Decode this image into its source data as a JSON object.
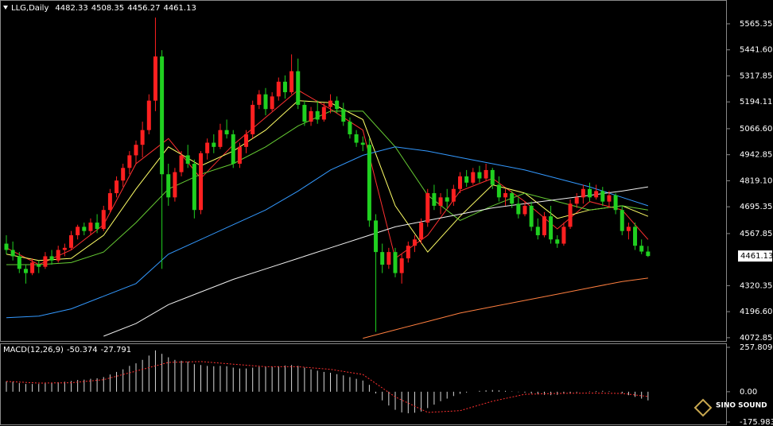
{
  "chart_data": [
    {
      "type": "candlestick",
      "title": "LLG,Daily",
      "open": [
        4520,
        4490,
        4460,
        4400,
        4380,
        4420,
        4410,
        4460,
        4440,
        4490,
        4500,
        4560,
        4600,
        4580,
        4620,
        4590,
        4680,
        4760,
        4820,
        4880,
        4940,
        4990,
        5060,
        5200,
        5410,
        4850,
        4740,
        4860,
        4940,
        4900,
        4680,
        4950,
        5000,
        4980,
        5060,
        5040,
        4900,
        4980,
        5040,
        5180,
        5230,
        5160,
        5220,
        5290,
        5240,
        5340,
        5180,
        5100,
        5150,
        5110,
        5170,
        5200,
        5160,
        5100,
        5040,
        5000,
        4990,
        4630,
        4480,
        4420,
        4480,
        4380,
        4450,
        4510,
        4540,
        4620,
        4760,
        4700,
        4740,
        4720,
        4780,
        4840,
        4810,
        4860,
        4830,
        4870,
        4800,
        4740,
        4760,
        4710,
        4660,
        4700,
        4600,
        4560,
        4650,
        4540,
        4520,
        4600,
        4710,
        4740,
        4780,
        4740,
        4770,
        4720,
        4750,
        4680,
        4580,
        4600,
        4510,
        4482.33
      ],
      "high": [
        4560,
        4530,
        4480,
        4420,
        4450,
        4440,
        4480,
        4490,
        4510,
        4520,
        4580,
        4610,
        4620,
        4640,
        4660,
        4700,
        4780,
        4840,
        4900,
        4960,
        5010,
        5100,
        5230,
        5595,
        5440,
        4900,
        4880,
        4960,
        4990,
        4920,
        4960,
        5020,
        5040,
        5090,
        5110,
        5060,
        5000,
        5060,
        5200,
        5250,
        5260,
        5240,
        5310,
        5320,
        5420,
        5400,
        5200,
        5170,
        5200,
        5190,
        5230,
        5220,
        5190,
        5120,
        5060,
        5030,
        5020,
        4660,
        4520,
        4500,
        4500,
        4470,
        4530,
        4560,
        4640,
        4780,
        4800,
        4760,
        4780,
        4800,
        4860,
        4870,
        4880,
        4890,
        4900,
        4880,
        4840,
        4780,
        4770,
        4740,
        4720,
        4720,
        4640,
        4670,
        4700,
        4560,
        4620,
        4730,
        4760,
        4800,
        4810,
        4800,
        4790,
        4770,
        4760,
        4700,
        4620,
        4620,
        4540,
        4508.35
      ],
      "low": [
        4470,
        4440,
        4380,
        4330,
        4370,
        4380,
        4400,
        4420,
        4430,
        4460,
        4490,
        4540,
        4560,
        4560,
        4570,
        4580,
        4670,
        4740,
        4790,
        4850,
        4900,
        4930,
        5040,
        5150,
        4400,
        4700,
        4720,
        4840,
        4880,
        4640,
        4660,
        4920,
        4950,
        4970,
        5020,
        4880,
        4880,
        4950,
        5020,
        5160,
        5130,
        5150,
        5200,
        5210,
        5230,
        5160,
        5080,
        5080,
        5090,
        5100,
        5140,
        5140,
        5080,
        5020,
        4980,
        4960,
        4600,
        4100,
        4380,
        4400,
        4360,
        4330,
        4430,
        4480,
        4520,
        4600,
        4680,
        4660,
        4690,
        4700,
        4760,
        4790,
        4800,
        4810,
        4820,
        4780,
        4720,
        4700,
        4690,
        4640,
        4650,
        4580,
        4540,
        4550,
        4520,
        4500,
        4510,
        4590,
        4690,
        4710,
        4720,
        4730,
        4700,
        4690,
        4660,
        4560,
        4540,
        4490,
        4470,
        4456.27
      ],
      "close": [
        4490,
        4460,
        4400,
        4380,
        4430,
        4410,
        4460,
        4440,
        4490,
        4500,
        4560,
        4600,
        4580,
        4620,
        4590,
        4680,
        4760,
        4820,
        4880,
        4940,
        4990,
        5060,
        5200,
        5410,
        4850,
        4740,
        4860,
        4940,
        4900,
        4680,
        4950,
        5000,
        4980,
        5060,
        5040,
        4900,
        4980,
        5040,
        5180,
        5230,
        5160,
        5220,
        5290,
        5240,
        5340,
        5180,
        5100,
        5150,
        5110,
        5170,
        5200,
        5160,
        5100,
        5040,
        5000,
        4990,
        4630,
        4480,
        4420,
        4480,
        4380,
        4450,
        4510,
        4540,
        4620,
        4760,
        4700,
        4740,
        4720,
        4780,
        4840,
        4810,
        4860,
        4830,
        4870,
        4800,
        4740,
        4760,
        4710,
        4660,
        4700,
        4600,
        4560,
        4650,
        4540,
        4520,
        4600,
        4710,
        4740,
        4780,
        4740,
        4770,
        4720,
        4750,
        4680,
        4580,
        4600,
        4510,
        4482.33,
        4461.13
      ],
      "up_color": "#ff2020",
      "down_color": "#20d020",
      "ma_x": [
        0,
        5,
        10,
        15,
        20,
        25,
        30,
        35,
        40,
        45,
        50,
        55,
        60,
        65,
        70,
        75,
        80,
        85,
        90,
        95,
        99
      ],
      "lines": [
        {
          "color": "#ff3030",
          "values": [
            4500,
            4420,
            4490,
            4610,
            4900,
            5020,
            4830,
            4990,
            5120,
            5250,
            5160,
            5060,
            4450,
            4560,
            4770,
            4830,
            4720,
            4590,
            4720,
            4680,
            4540
          ]
        },
        {
          "color": "#ffff66",
          "values": [
            4470,
            4440,
            4450,
            4560,
            4780,
            4980,
            4890,
            4960,
            5060,
            5200,
            5190,
            5110,
            4700,
            4480,
            4650,
            4800,
            4760,
            4640,
            4680,
            4700,
            4650
          ]
        },
        {
          "color": "#66cc33",
          "values": [
            4420,
            4420,
            4430,
            4480,
            4620,
            4780,
            4850,
            4900,
            4980,
            5080,
            5150,
            5150,
            4980,
            4750,
            4630,
            4700,
            4760,
            4720,
            4680,
            4700,
            4680
          ]
        },
        {
          "color": "#3399ff",
          "values": [
            4168,
            4175,
            4210,
            4270,
            4330,
            4470,
            4540,
            4610,
            4680,
            4770,
            4870,
            4940,
            4980,
            4960,
            4930,
            4900,
            4870,
            4830,
            4790,
            4740,
            4700
          ]
        },
        {
          "color": "#f0f0f0",
          "values": [
            null,
            null,
            null,
            4080,
            4140,
            4230,
            4290,
            4350,
            4400,
            4450,
            4500,
            4550,
            4600,
            4630,
            4660,
            4690,
            4710,
            4730,
            4750,
            4770,
            4790
          ]
        },
        {
          "color": "#ff7f3f",
          "values": [
            null,
            null,
            null,
            null,
            null,
            null,
            null,
            null,
            null,
            null,
            null,
            4070,
            4110,
            4150,
            4190,
            4220,
            4250,
            4280,
            4310,
            4340,
            4356
          ]
        }
      ],
      "ylim": [
        4061,
        5671
      ],
      "yticks": [
        5565.35,
        {
          "value": 5441.6,
          "label": "5441.60"
        },
        5317.85,
        5194.11,
        {
          "value": 5066.6,
          "label": "5066.60"
        },
        4942.85,
        {
          "value": 4819.1,
          "label": "4819.10"
        },
        4695.35,
        4567.85,
        4320.35,
        {
          "value": 4196.6,
          "label": "4196.60"
        },
        4072.85
      ],
      "logo": "SINO SOUND"
    },
    {
      "type": "macd",
      "title": "MACD(12,26,9)",
      "values": [
        60,
        58,
        50,
        45,
        45,
        45,
        48,
        50,
        55,
        58,
        62,
        68,
        70,
        75,
        78,
        85,
        100,
        115,
        130,
        150,
        165,
        185,
        210,
        240,
        220,
        200,
        185,
        180,
        175,
        160,
        155,
        150,
        148,
        150,
        148,
        140,
        135,
        135,
        140,
        145,
        145,
        145,
        148,
        152,
        155,
        150,
        140,
        130,
        122,
        115,
        110,
        102,
        95,
        85,
        75,
        65,
        40,
        -10,
        -50,
        -80,
        -105,
        -120,
        -125,
        -122,
        -115,
        -95,
        -75,
        -55,
        -40,
        -25,
        -12,
        -5,
        0,
        5,
        8,
        10,
        8,
        5,
        2,
        -2,
        -5,
        -10,
        -15,
        -18,
        -20,
        -18,
        -12,
        -8,
        -4,
        0,
        2,
        4,
        5,
        3,
        0,
        -10,
        -20,
        -30,
        -40,
        -50.374
      ],
      "signal": {
        "color": "#ff3030",
        "x": [
          0,
          5,
          10,
          15,
          20,
          25,
          30,
          35,
          40,
          45,
          50,
          55,
          60,
          65,
          70,
          75,
          80,
          85,
          90,
          95,
          99
        ],
        "values": [
          60,
          50,
          52,
          70,
          120,
          170,
          175,
          160,
          145,
          145,
          130,
          100,
          -30,
          -120,
          -110,
          -55,
          -15,
          -10,
          -8,
          -10,
          -27.791
        ]
      },
      "bar_color": "#d8d8d8",
      "ylim": [
        -175.983,
        257.809
      ],
      "yticks": [
        257.809,
        {
          "value": 0,
          "label": "0.00"
        },
        -175.983
      ]
    }
  ]
}
